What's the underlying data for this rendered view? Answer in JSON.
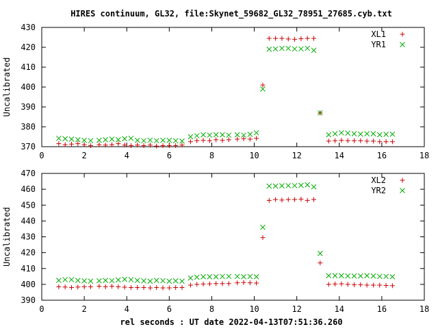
{
  "title": "HIRES continuum, GL32, file:Skynet_59682_GL32_78951_27685.cyb.txt",
  "xlabel": "rel seconds : UT date 2022-04-13T07:51:36.260",
  "chart_data": [
    {
      "type": "scatter",
      "ylabel": "Uncalibrated",
      "xlim": [
        0,
        18
      ],
      "ylim": [
        370,
        430
      ],
      "x_ticks": [
        0,
        2,
        4,
        6,
        8,
        10,
        12,
        14,
        16,
        18
      ],
      "y_ticks": [
        370,
        380,
        390,
        400,
        410,
        420,
        430
      ],
      "legend_position": "top-right",
      "series": [
        {
          "name": "XL1",
          "marker": "+",
          "color": "#cc0000",
          "x": [
            0.8,
            1.1,
            1.4,
            1.7,
            2.0,
            2.3,
            2.7,
            3.0,
            3.3,
            3.6,
            3.9,
            4.2,
            4.5,
            4.8,
            5.1,
            5.4,
            5.7,
            6.0,
            6.3,
            6.6,
            7.0,
            7.3,
            7.6,
            7.9,
            8.2,
            8.5,
            8.8,
            9.2,
            9.5,
            9.8,
            10.1,
            10.4,
            10.7,
            11.0,
            11.3,
            11.6,
            11.9,
            12.2,
            12.5,
            12.8,
            13.1,
            13.5,
            13.8,
            14.1,
            14.4,
            14.7,
            15.0,
            15.3,
            15.6,
            15.9,
            16.2,
            16.5
          ],
          "y": [
            371.5,
            371,
            371.3,
            371.5,
            371,
            370.5,
            371,
            370.8,
            371,
            371.5,
            370.8,
            370.5,
            370.8,
            370.5,
            370.8,
            370.3,
            370.5,
            370.5,
            370.5,
            370.8,
            372.5,
            373,
            373.2,
            373,
            373.5,
            373.2,
            373.5,
            373.8,
            374,
            373.8,
            374.2,
            401,
            424.5,
            424.5,
            424.5,
            424.2,
            424,
            424.3,
            424.5,
            424.5,
            387,
            372.8,
            373,
            373.2,
            373,
            373,
            373,
            372.8,
            372.8,
            372.5,
            372.5,
            372.5
          ]
        },
        {
          "name": "YR1",
          "marker": "x",
          "color": "#00aa00",
          "x": [
            0.8,
            1.1,
            1.4,
            1.7,
            2.0,
            2.3,
            2.7,
            3.0,
            3.3,
            3.6,
            3.9,
            4.2,
            4.5,
            4.8,
            5.1,
            5.4,
            5.7,
            6.0,
            6.3,
            6.6,
            7.0,
            7.3,
            7.6,
            7.9,
            8.2,
            8.5,
            8.8,
            9.2,
            9.5,
            9.8,
            10.1,
            10.4,
            10.7,
            11.0,
            11.3,
            11.6,
            11.9,
            12.2,
            12.5,
            12.8,
            13.1,
            13.5,
            13.8,
            14.1,
            14.4,
            14.7,
            15.0,
            15.3,
            15.6,
            15.9,
            16.2,
            16.5
          ],
          "y": [
            374.2,
            374,
            373.8,
            373.5,
            373.2,
            373,
            373.2,
            373.5,
            373.8,
            373.5,
            374,
            374.2,
            373.2,
            373,
            373.3,
            373,
            373.2,
            373.2,
            373,
            372.8,
            375,
            375.5,
            376,
            375.8,
            376,
            376,
            375.8,
            376,
            375.8,
            376.2,
            377,
            399,
            419,
            419.2,
            419.5,
            419.5,
            419.2,
            419.2,
            419.5,
            418.5,
            387,
            376,
            376.5,
            377,
            376.8,
            376.5,
            376.3,
            376.5,
            376.5,
            376,
            376.2,
            376.3
          ]
        }
      ]
    },
    {
      "type": "scatter",
      "ylabel": "Uncalibrated",
      "xlim": [
        0,
        18
      ],
      "ylim": [
        390,
        470
      ],
      "x_ticks": [
        0,
        2,
        4,
        6,
        8,
        10,
        12,
        14,
        16,
        18
      ],
      "y_ticks": [
        390,
        400,
        410,
        420,
        430,
        440,
        450,
        460,
        470
      ],
      "legend_position": "top-right",
      "series": [
        {
          "name": "XL2",
          "marker": "+",
          "color": "#cc0000",
          "x": [
            0.8,
            1.1,
            1.4,
            1.7,
            2.0,
            2.3,
            2.7,
            3.0,
            3.3,
            3.6,
            3.9,
            4.2,
            4.5,
            4.8,
            5.1,
            5.4,
            5.7,
            6.0,
            6.3,
            6.6,
            7.0,
            7.3,
            7.6,
            7.9,
            8.2,
            8.5,
            8.8,
            9.2,
            9.5,
            9.8,
            10.1,
            10.4,
            10.7,
            11.0,
            11.3,
            11.6,
            11.9,
            12.2,
            12.5,
            12.8,
            13.1,
            13.5,
            13.8,
            14.1,
            14.4,
            14.7,
            15.0,
            15.3,
            15.6,
            15.9,
            16.2,
            16.5
          ],
          "y": [
            398.5,
            398.3,
            398,
            398.3,
            398.5,
            398.5,
            398.8,
            398.5,
            398.8,
            398.5,
            398.2,
            398,
            398,
            398,
            397.8,
            398,
            397.8,
            397.8,
            398,
            398,
            399.5,
            400,
            400.2,
            400.3,
            400.5,
            400.5,
            400.5,
            401,
            401.2,
            401,
            400.8,
            429.5,
            453,
            453.5,
            453.2,
            453.5,
            453.5,
            453.8,
            453,
            453.5,
            413.5,
            400,
            400.2,
            400.3,
            400,
            399.8,
            399.8,
            399.5,
            399.5,
            399.5,
            399.3,
            399.2
          ]
        },
        {
          "name": "YR2",
          "marker": "x",
          "color": "#00aa00",
          "x": [
            0.8,
            1.1,
            1.4,
            1.7,
            2.0,
            2.3,
            2.7,
            3.0,
            3.3,
            3.6,
            3.9,
            4.2,
            4.5,
            4.8,
            5.1,
            5.4,
            5.7,
            6.0,
            6.3,
            6.6,
            7.0,
            7.3,
            7.6,
            7.9,
            8.2,
            8.5,
            8.8,
            9.2,
            9.5,
            9.8,
            10.1,
            10.4,
            10.7,
            11.0,
            11.3,
            11.6,
            11.9,
            12.2,
            12.5,
            12.8,
            13.1,
            13.5,
            13.8,
            14.1,
            14.4,
            14.7,
            15.0,
            15.3,
            15.6,
            15.9,
            16.2,
            16.5
          ],
          "y": [
            402.5,
            403,
            403,
            402.5,
            402.2,
            402,
            402.2,
            402.5,
            402.3,
            402.8,
            403.2,
            403,
            402.5,
            402.2,
            402,
            402.5,
            402.3,
            402,
            402.2,
            402,
            404,
            404.5,
            404.8,
            404.8,
            404.8,
            405,
            405,
            405,
            404.8,
            405,
            404.8,
            436,
            462,
            462,
            462.2,
            462.3,
            462.3,
            462.5,
            462.8,
            461.5,
            419.5,
            405.5,
            405.5,
            405.5,
            405.3,
            405.3,
            405.3,
            405.5,
            405.3,
            405,
            405,
            404.8
          ]
        }
      ]
    }
  ]
}
